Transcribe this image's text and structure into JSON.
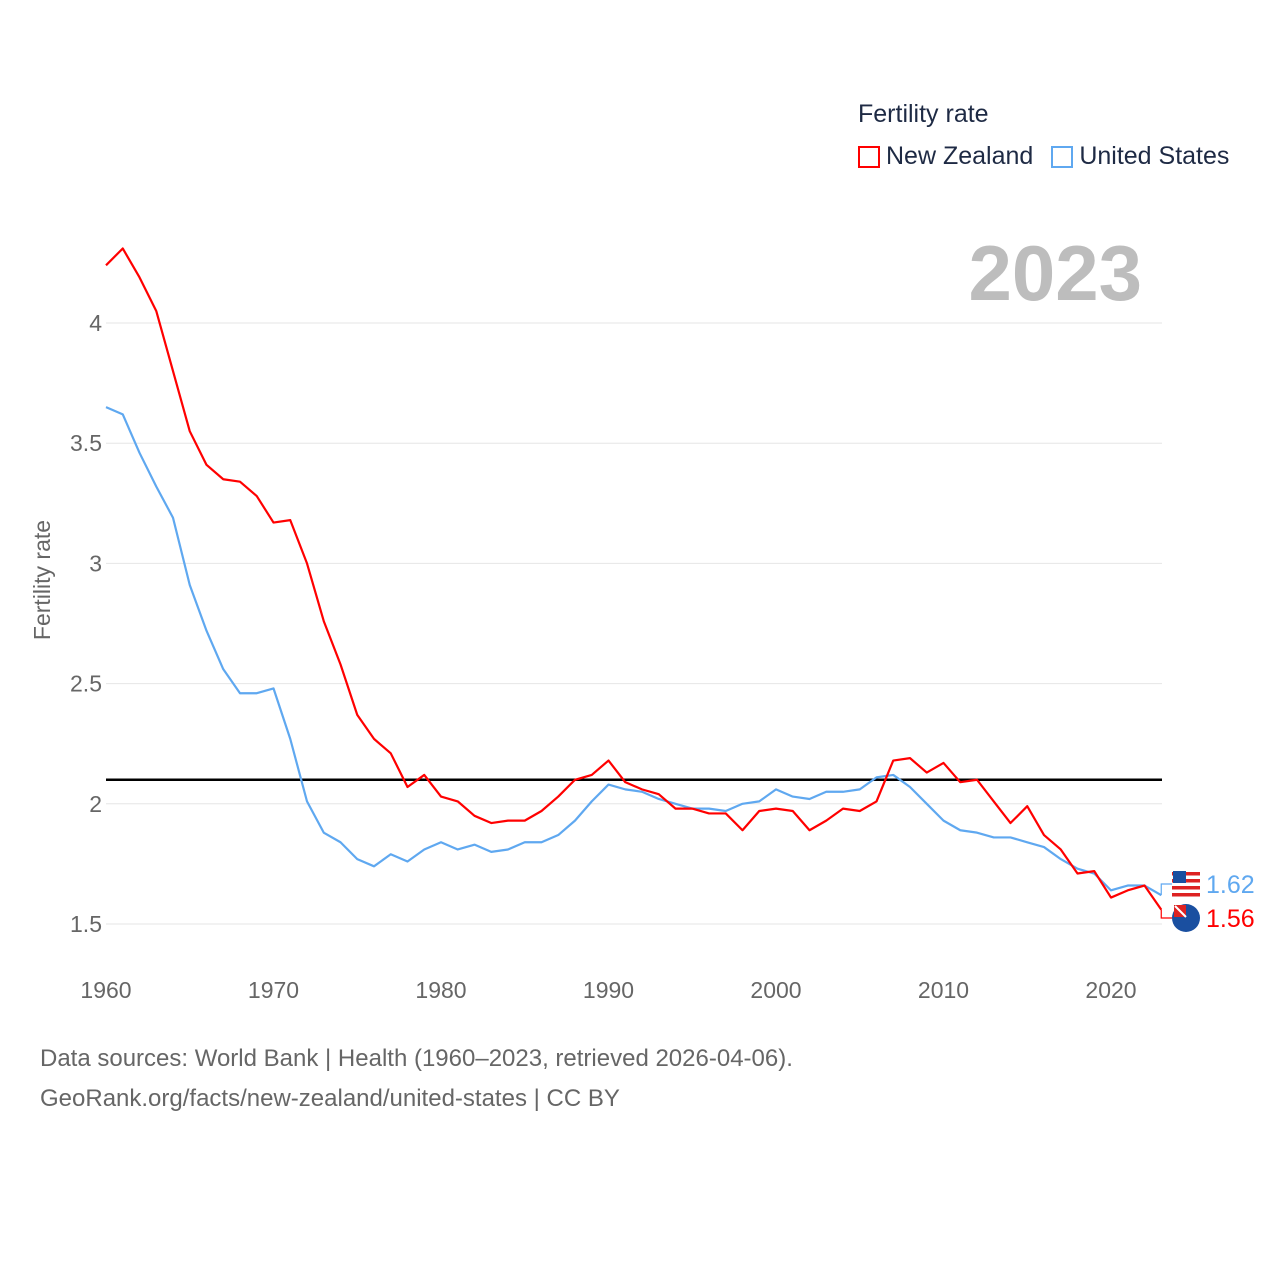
{
  "legend": {
    "title": "Fertility rate",
    "items": [
      {
        "name": "New Zealand",
        "color": "#ff0000"
      },
      {
        "name": "United States",
        "color": "#5fa8f0"
      }
    ]
  },
  "year_label": "2023",
  "footer": {
    "line1": "Data sources: World Bank | Health (1960–2023, retrieved 2026-04-06).",
    "line2": "GeoRank.org/facts/new-zealand/united-states | CC BY"
  },
  "chart_data": {
    "type": "line",
    "title": "Fertility rate",
    "xlabel": "",
    "ylabel": "Fertility rate",
    "xlim": [
      1960,
      2023
    ],
    "ylim": [
      1.5,
      4.3
    ],
    "x_ticks": [
      "1960",
      "1970",
      "1980",
      "1990",
      "2000",
      "2010",
      "2020"
    ],
    "y_ticks": [
      "1.5",
      "2",
      "2.5",
      "3",
      "3.5",
      "4"
    ],
    "reference_line": 2.1,
    "grid": true,
    "legend_position": "top-right",
    "x": [
      1960,
      1961,
      1962,
      1963,
      1964,
      1965,
      1966,
      1967,
      1968,
      1969,
      1970,
      1971,
      1972,
      1973,
      1974,
      1975,
      1976,
      1977,
      1978,
      1979,
      1980,
      1981,
      1982,
      1983,
      1984,
      1985,
      1986,
      1987,
      1988,
      1989,
      1990,
      1991,
      1992,
      1993,
      1994,
      1995,
      1996,
      1997,
      1998,
      1999,
      2000,
      2001,
      2002,
      2003,
      2004,
      2005,
      2006,
      2007,
      2008,
      2009,
      2010,
      2011,
      2012,
      2013,
      2014,
      2015,
      2016,
      2017,
      2018,
      2019,
      2020,
      2021,
      2022,
      2023
    ],
    "series": [
      {
        "name": "New Zealand",
        "color": "#ff0000",
        "end_label": "1.56",
        "values": [
          4.24,
          4.31,
          4.19,
          4.05,
          3.8,
          3.55,
          3.41,
          3.35,
          3.34,
          3.28,
          3.17,
          3.18,
          3.0,
          2.76,
          2.58,
          2.37,
          2.27,
          2.21,
          2.07,
          2.12,
          2.03,
          2.01,
          1.95,
          1.92,
          1.93,
          1.93,
          1.97,
          2.03,
          2.1,
          2.12,
          2.18,
          2.09,
          2.06,
          2.04,
          1.98,
          1.98,
          1.96,
          1.96,
          1.89,
          1.97,
          1.98,
          1.97,
          1.89,
          1.93,
          1.98,
          1.97,
          2.01,
          2.18,
          2.19,
          2.13,
          2.17,
          2.09,
          2.1,
          2.01,
          1.92,
          1.99,
          1.87,
          1.81,
          1.71,
          1.72,
          1.61,
          1.64,
          1.66,
          1.56
        ]
      },
      {
        "name": "United States",
        "color": "#5fa8f0",
        "end_label": "1.62",
        "values": [
          3.65,
          3.62,
          3.46,
          3.32,
          3.19,
          2.91,
          2.72,
          2.56,
          2.46,
          2.46,
          2.48,
          2.27,
          2.01,
          1.88,
          1.84,
          1.77,
          1.74,
          1.79,
          1.76,
          1.81,
          1.84,
          1.81,
          1.83,
          1.8,
          1.81,
          1.84,
          1.84,
          1.87,
          1.93,
          2.01,
          2.08,
          2.06,
          2.05,
          2.02,
          2.0,
          1.98,
          1.98,
          1.97,
          2.0,
          2.01,
          2.06,
          2.03,
          2.02,
          2.05,
          2.05,
          2.06,
          2.11,
          2.12,
          2.07,
          2.0,
          1.93,
          1.89,
          1.88,
          1.86,
          1.86,
          1.84,
          1.82,
          1.77,
          1.73,
          1.71,
          1.64,
          1.66,
          1.66,
          1.62
        ]
      }
    ]
  }
}
